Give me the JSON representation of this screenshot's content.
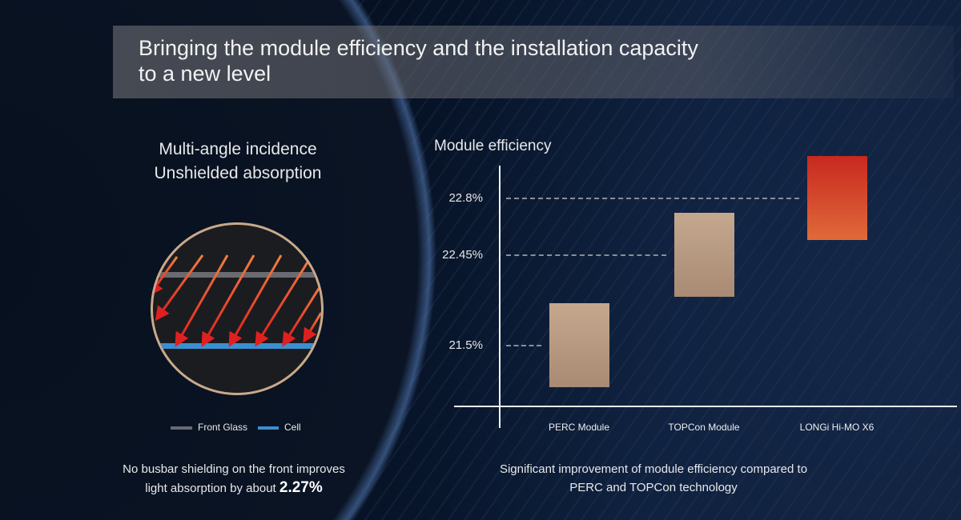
{
  "slide": {
    "title_line1": "Bringing the module efficiency and the installation capacity",
    "title_line2": "to a new level"
  },
  "left_panel": {
    "heading_line1": "Multi-angle incidence",
    "heading_line2": "Unshielded absorption",
    "legend": [
      {
        "label": "Front Glass",
        "color": "#6a6a70"
      },
      {
        "label": "Cell",
        "color": "#3a8fd0"
      }
    ],
    "caption_line1": "No busbar shielding on the front improves",
    "caption_line2_prefix": "light absorption by about ",
    "caption_highlight": "2.27%"
  },
  "chart_data": {
    "type": "bar",
    "title": "Module efficiency",
    "categories": [
      "PERC Module",
      "TOPCon Module",
      "LONGi Hi-MO X6"
    ],
    "values": [
      21.5,
      22.45,
      22.8
    ],
    "tick_labels": [
      "22.8%",
      "22.45%",
      "21.5%"
    ],
    "bar_colors": [
      "#b89a82",
      "#b89a82",
      "#d83a22"
    ],
    "grid": false,
    "legend": "none"
  },
  "right_panel": {
    "caption_line1": "Significant improvement of module efficiency compared to",
    "caption_line2": "PERC and TOPCon technology"
  }
}
